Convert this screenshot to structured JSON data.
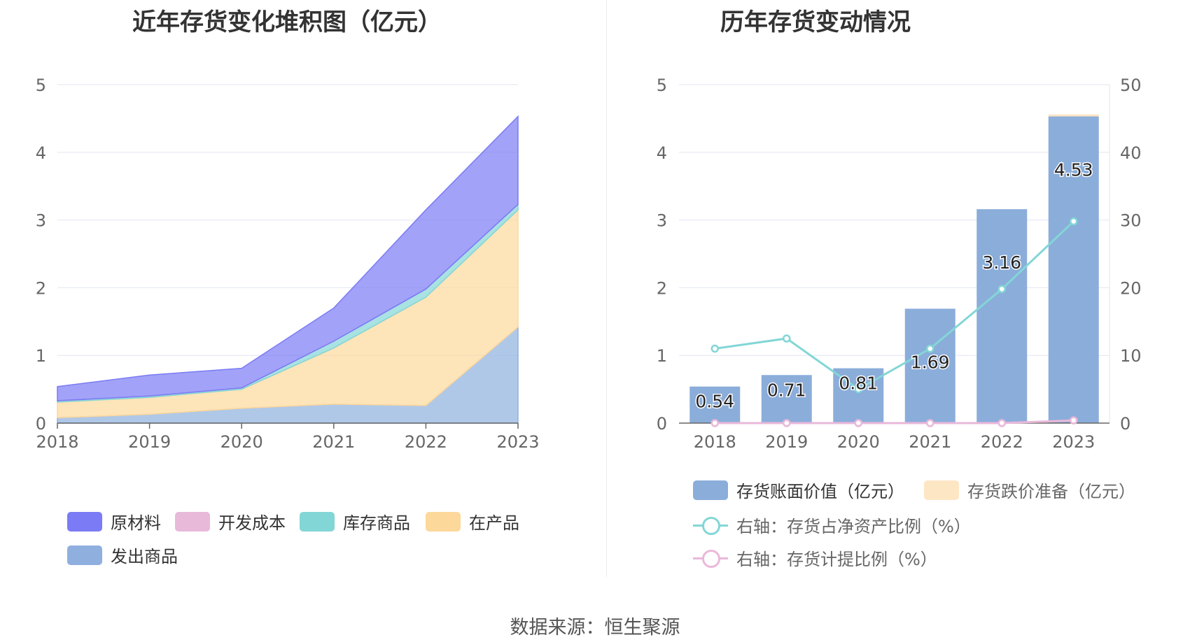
{
  "footer": {
    "source": "数据来源：恒生聚源"
  },
  "chart_data": [
    {
      "type": "area",
      "title": "近年存货变化堆积图（亿元）",
      "stacked": true,
      "categories": [
        "2018",
        "2019",
        "2020",
        "2021",
        "2022",
        "2023"
      ],
      "ylim": [
        0,
        5
      ],
      "yticks": [
        "0",
        "1",
        "2",
        "3",
        "4",
        "5"
      ],
      "grid": true,
      "legend_position": "bottom",
      "series": [
        {
          "name": "发出商品",
          "color": "#8fb0de",
          "values": [
            0.08,
            0.13,
            0.22,
            0.28,
            0.26,
            1.42
          ]
        },
        {
          "name": "在产品",
          "color": "#fdd89b",
          "values": [
            0.23,
            0.25,
            0.28,
            0.83,
            1.6,
            1.73
          ]
        },
        {
          "name": "库存商品",
          "color": "#83d6d6",
          "values": [
            0.02,
            0.02,
            0.02,
            0.1,
            0.12,
            0.08
          ]
        },
        {
          "name": "开发成本",
          "color": "#e8b9d9",
          "values": [
            0,
            0,
            0,
            0,
            0,
            0
          ]
        },
        {
          "name": "原材料",
          "color": "#7b7bf5",
          "values": [
            0.21,
            0.31,
            0.29,
            0.49,
            1.17,
            1.3
          ]
        }
      ],
      "legend_order": [
        "原材料",
        "开发成本",
        "库存商品",
        "在产品",
        "发出商品"
      ]
    },
    {
      "type": "bar",
      "title": "历年存货变动情况",
      "categories": [
        "2018",
        "2019",
        "2020",
        "2021",
        "2022",
        "2023"
      ],
      "ylim": [
        0,
        5
      ],
      "yticks": [
        "0",
        "1",
        "2",
        "3",
        "4",
        "5"
      ],
      "y2lim": [
        0,
        50
      ],
      "y2ticks": [
        "0",
        "10",
        "20",
        "30",
        "40",
        "50"
      ],
      "grid": true,
      "legend_position": "bottom",
      "series": [
        {
          "name": "存货账面价值（亿元）",
          "kind": "bar",
          "axis": "left",
          "color": "#8badda",
          "values": [
            0.54,
            0.71,
            0.81,
            1.69,
            3.16,
            4.53
          ],
          "labels": [
            "0.54",
            "0.71",
            "0.81",
            "1.69",
            "3.16",
            "4.53"
          ]
        },
        {
          "name": "存货跌价准备（亿元）",
          "kind": "bar",
          "axis": "left",
          "color": "#fde6c4",
          "values": [
            0,
            0,
            0,
            0,
            0,
            0.03
          ]
        },
        {
          "name": "右轴：存货占净资产比例（%）",
          "kind": "line",
          "axis": "right",
          "color": "#83d6d6",
          "values": [
            11.0,
            12.5,
            5.0,
            11.0,
            19.8,
            29.8
          ]
        },
        {
          "name": "右轴：存货计提比例（%）",
          "kind": "line",
          "axis": "right",
          "color": "#eab8d9",
          "values": [
            0,
            0,
            0,
            0,
            0,
            0.4
          ]
        }
      ]
    }
  ]
}
